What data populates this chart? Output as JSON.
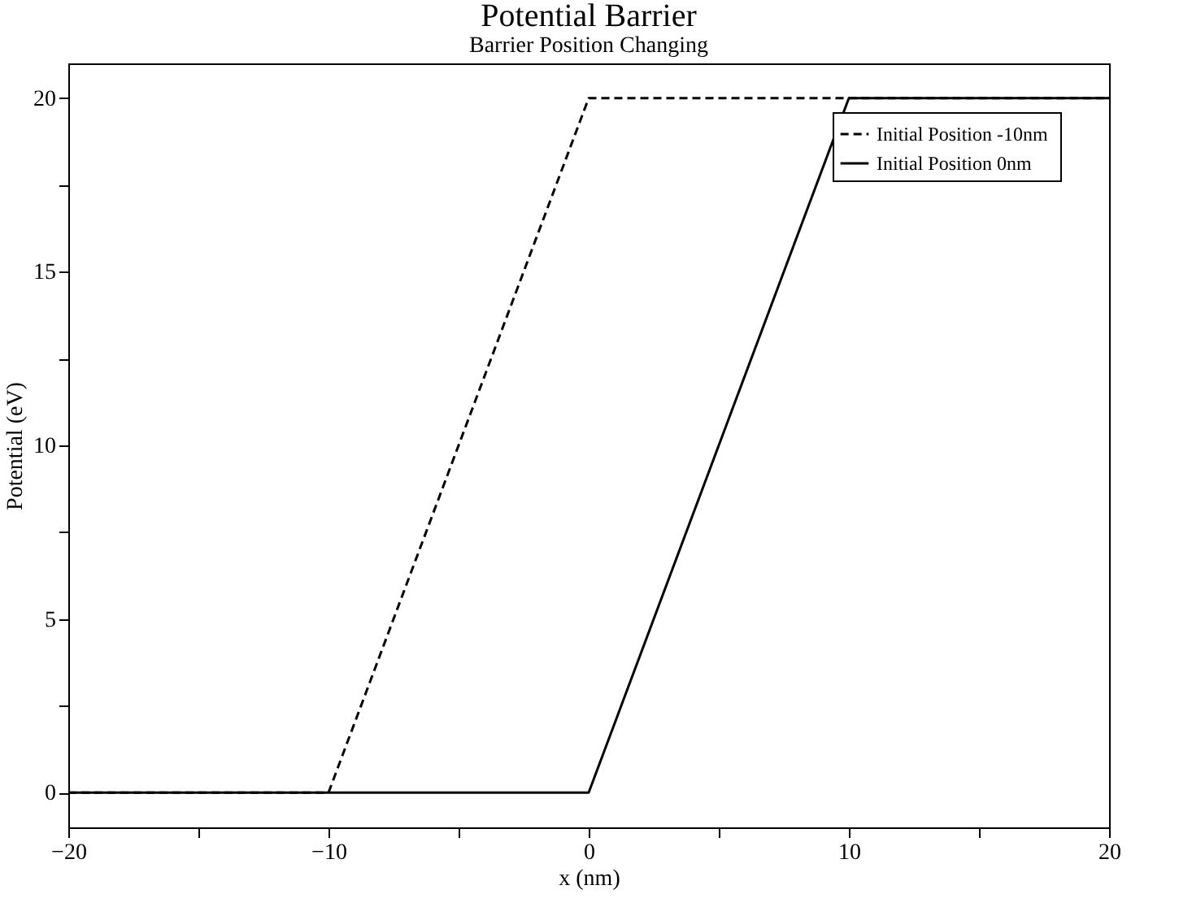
{
  "chart_data": {
    "type": "line",
    "title": "Potential Barrier",
    "subtitle": "Barrier Position Changing",
    "xlabel": "x (nm)",
    "ylabel": "Potential (eV)",
    "xlim": [
      -20,
      20
    ],
    "xticks": [
      -20,
      {
        "value": -15,
        "label": null
      },
      -10,
      {
        "value": -5,
        "label": null
      },
      0,
      {
        "value": 5,
        "label": null
      },
      10,
      {
        "value": 15,
        "label": null
      },
      20
    ],
    "ylim": [
      -1,
      21
    ],
    "yticks": [
      0,
      {
        "value": 2.5,
        "label": null
      },
      5,
      {
        "value": 7.5,
        "label": null
      },
      10,
      {
        "value": 12.5,
        "label": null
      },
      15,
      {
        "value": 17.5,
        "label": null
      },
      20
    ],
    "grid": false,
    "legend": "top right",
    "series": [
      {
        "name": "Initial Position  -10nm",
        "color": "#000000",
        "line_style": "dashed",
        "x": [
          -20,
          -10,
          0,
          20
        ],
        "values": [
          0,
          0,
          20,
          20
        ]
      },
      {
        "name": "Initial Position    0nm",
        "color": "#000000",
        "line_style": "solid",
        "x": [
          -20,
          0,
          10,
          20
        ],
        "values": [
          0,
          0,
          20,
          20
        ]
      }
    ]
  }
}
